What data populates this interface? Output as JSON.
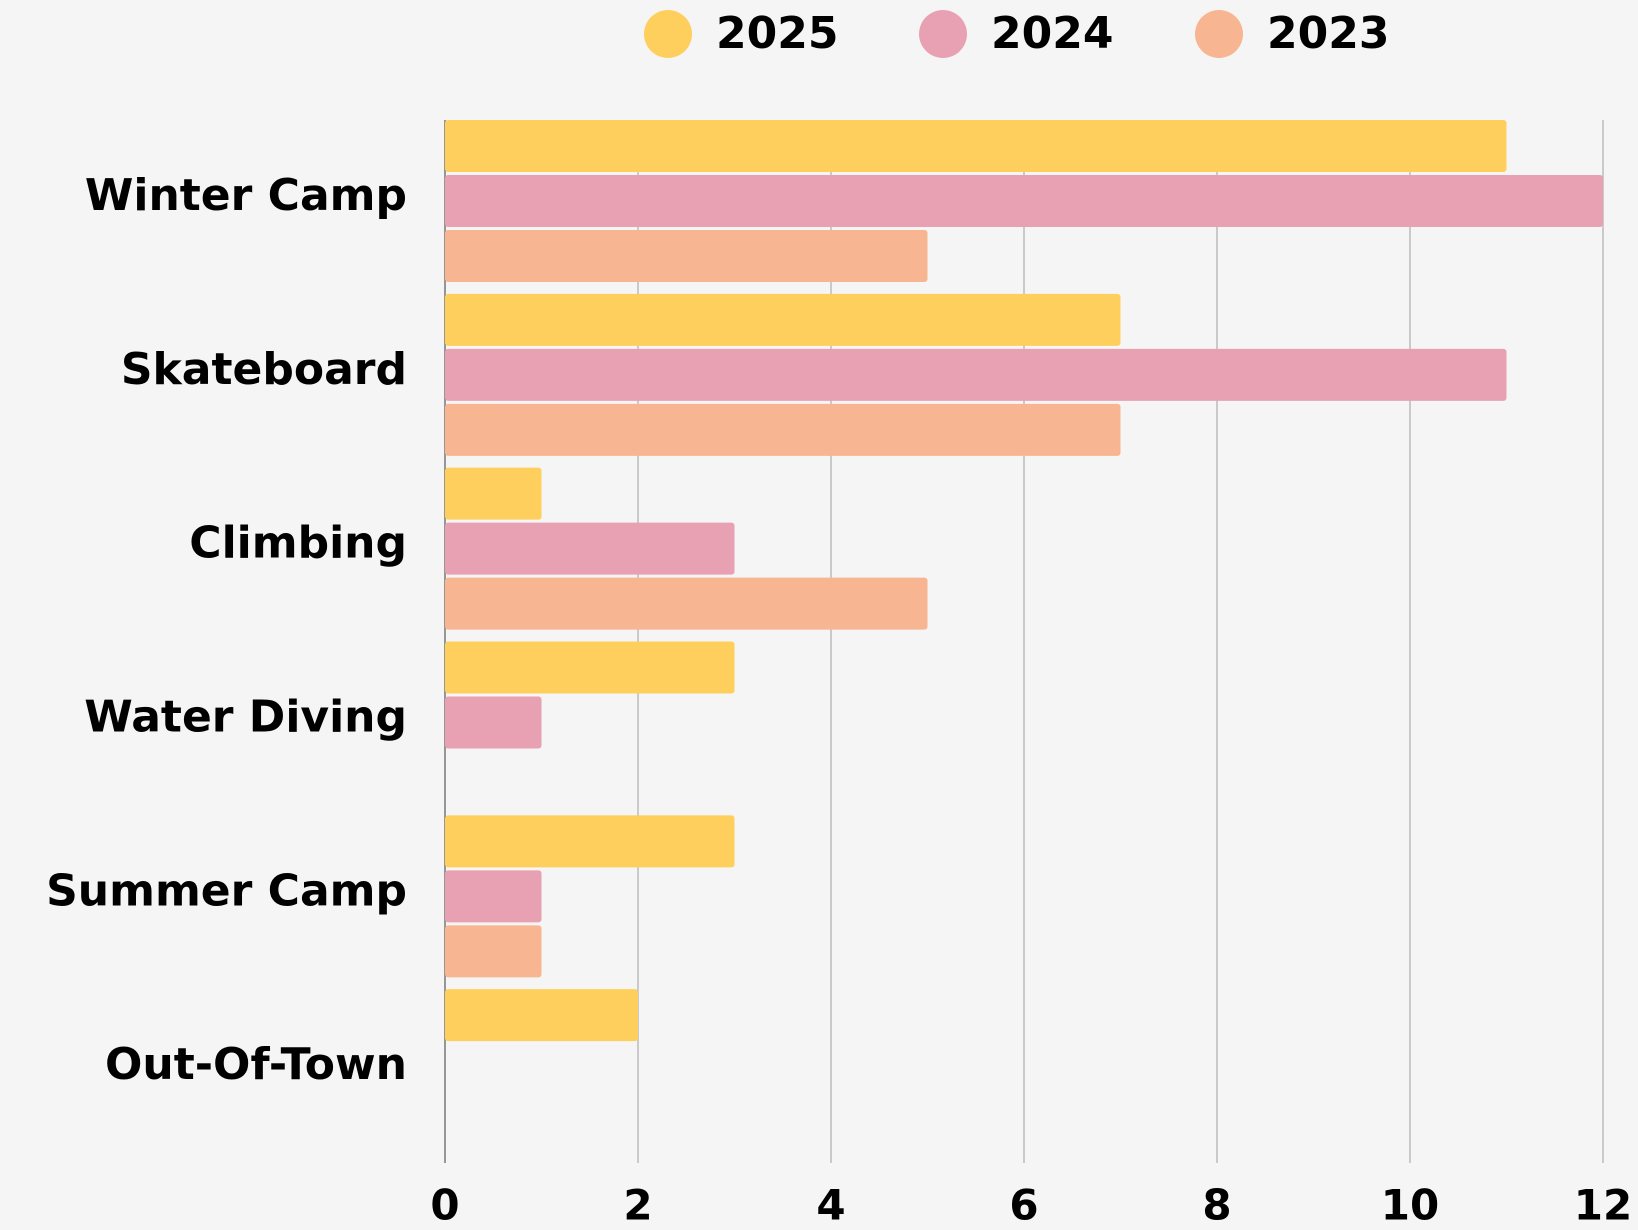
{
  "chart_data": {
    "type": "bar",
    "orientation": "horizontal",
    "categories": [
      "Winter Camp",
      "Skateboard",
      "Climbing",
      "Water Diving",
      "Summer Camp",
      "Out-Of-Town"
    ],
    "series": [
      {
        "name": "2025",
        "color": "#fecf5c",
        "values": [
          11,
          7,
          1,
          3,
          3,
          2
        ]
      },
      {
        "name": "2024",
        "color": "#e8a1b3",
        "values": [
          12,
          11,
          3,
          1,
          1,
          0
        ]
      },
      {
        "name": "2023",
        "color": "#f7b591",
        "values": [
          5,
          7,
          5,
          0,
          1,
          0
        ]
      }
    ],
    "xlim": [
      0,
      12
    ],
    "xticks": [
      0,
      2,
      4,
      6,
      8,
      10,
      12
    ],
    "grid": true,
    "legend": "top"
  }
}
